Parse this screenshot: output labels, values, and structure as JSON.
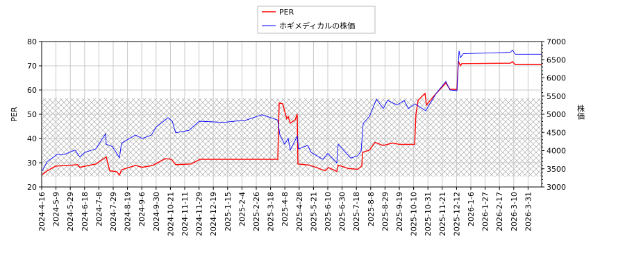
{
  "chart_data": {
    "type": "line",
    "title": "",
    "xlabel": "",
    "ylabel": "PER",
    "y2label": "株価",
    "ylim": [
      20,
      80
    ],
    "y2lim": [
      3000,
      7000
    ],
    "yticks": [
      20,
      30,
      40,
      50,
      60,
      70,
      80
    ],
    "y2ticks": [
      3000,
      3500,
      4000,
      4500,
      5000,
      5500,
      6000,
      6500,
      7000
    ],
    "xlim": [
      0,
      720
    ],
    "grid": true,
    "legend_position": "top-center",
    "shaded_band_per": [
      24.3,
      56.6
    ],
    "xticks": [
      "2024-4-16",
      "2024-5-9",
      "2024-5-29",
      "2024-6-18",
      "2024-7-8",
      "2024-7-29",
      "2024-8-19",
      "2024-9-6",
      "2024-9-30",
      "2024-10-21",
      "2024-11-11",
      "2024-11-29",
      "2024-12-19",
      "2025-1-15",
      "2025-2-4",
      "2025-2-26",
      "2025-3-18",
      "2025-4-8",
      "2025-4-28",
      "2025-5-21",
      "2025-6-10",
      "2025-6-30",
      "2025-7-18",
      "2025-8-8",
      "2025-8-29",
      "2025-9-19",
      "2025-10-10",
      "2025-10-31",
      "2025-11-21",
      "2025-12-12",
      "2026-1-6",
      "2026-1-27",
      "2026-2-17",
      "2026-3-10",
      "2026-3-31"
    ],
    "xtick_step": 20.6,
    "series": [
      {
        "name": "PER",
        "color": "#ff0000",
        "axis": "left",
        "x": [
          1,
          8,
          20,
          52,
          55,
          78,
          93,
          98,
          108,
          112,
          115,
          135,
          145,
          160,
          178,
          187,
          193,
          215,
          228,
          295,
          340,
          342,
          347,
          353,
          355,
          358,
          365,
          368,
          369,
          385,
          395,
          408,
          413,
          425,
          427,
          442,
          455,
          461,
          462,
          472,
          480,
          492,
          505,
          515,
          528,
          537,
          539,
          542,
          552,
          554,
          565,
          582,
          588,
          598,
          600,
          603,
          605,
          675,
          678,
          682,
          720
        ],
        "y": [
          25.1,
          26.7,
          28.6,
          29.2,
          28.1,
          29.5,
          32.4,
          26.7,
          26.3,
          24.9,
          27.1,
          28.9,
          28.1,
          28.9,
          31.7,
          31.4,
          29.2,
          29.5,
          31.4,
          31.4,
          31.4,
          54.6,
          54.3,
          48.1,
          49.0,
          46.3,
          47.7,
          50.0,
          29.5,
          29.0,
          28.1,
          26.7,
          28.0,
          26.4,
          29.0,
          27.6,
          27.3,
          28.6,
          34.3,
          35.2,
          38.4,
          37.1,
          38.1,
          37.6,
          37.6,
          37.6,
          50.0,
          55.7,
          58.6,
          53.8,
          57.6,
          62.9,
          60.3,
          60.3,
          71.9,
          70.0,
          70.9,
          71.1,
          71.7,
          70.5,
          70.5
        ]
      },
      {
        "name": "ホギメディカルの株価",
        "color": "#0000ff",
        "axis": "right",
        "x": [
          1,
          8,
          22,
          32,
          48,
          55,
          62,
          78,
          92,
          93,
          102,
          112,
          115,
          135,
          145,
          158,
          165,
          182,
          188,
          193,
          212,
          227,
          262,
          295,
          317,
          340,
          343,
          350,
          355,
          358,
          368,
          370,
          383,
          388,
          405,
          412,
          425,
          427,
          445,
          455,
          460,
          463,
          472,
          482,
          492,
          498,
          512,
          522,
          528,
          538,
          553,
          562,
          568,
          582,
          588,
          598,
          601,
          603,
          607,
          675,
          678,
          682,
          720
        ],
        "y": [
          3444,
          3699,
          3890,
          3890,
          4016,
          3825,
          3953,
          4048,
          4461,
          4175,
          4111,
          3806,
          4206,
          4429,
          4334,
          4429,
          4652,
          4905,
          4810,
          4492,
          4556,
          4810,
          4778,
          4842,
          4987,
          4842,
          4429,
          4175,
          4334,
          4016,
          4397,
          4048,
          4143,
          3953,
          3762,
          3921,
          3667,
          4175,
          3794,
          3857,
          3985,
          4747,
          4937,
          5414,
          5158,
          5381,
          5254,
          5381,
          5158,
          5286,
          5095,
          5381,
          5572,
          5901,
          5667,
          5648,
          6747,
          6557,
          6664,
          6702,
          6766,
          6652,
          6652
        ]
      }
    ]
  }
}
